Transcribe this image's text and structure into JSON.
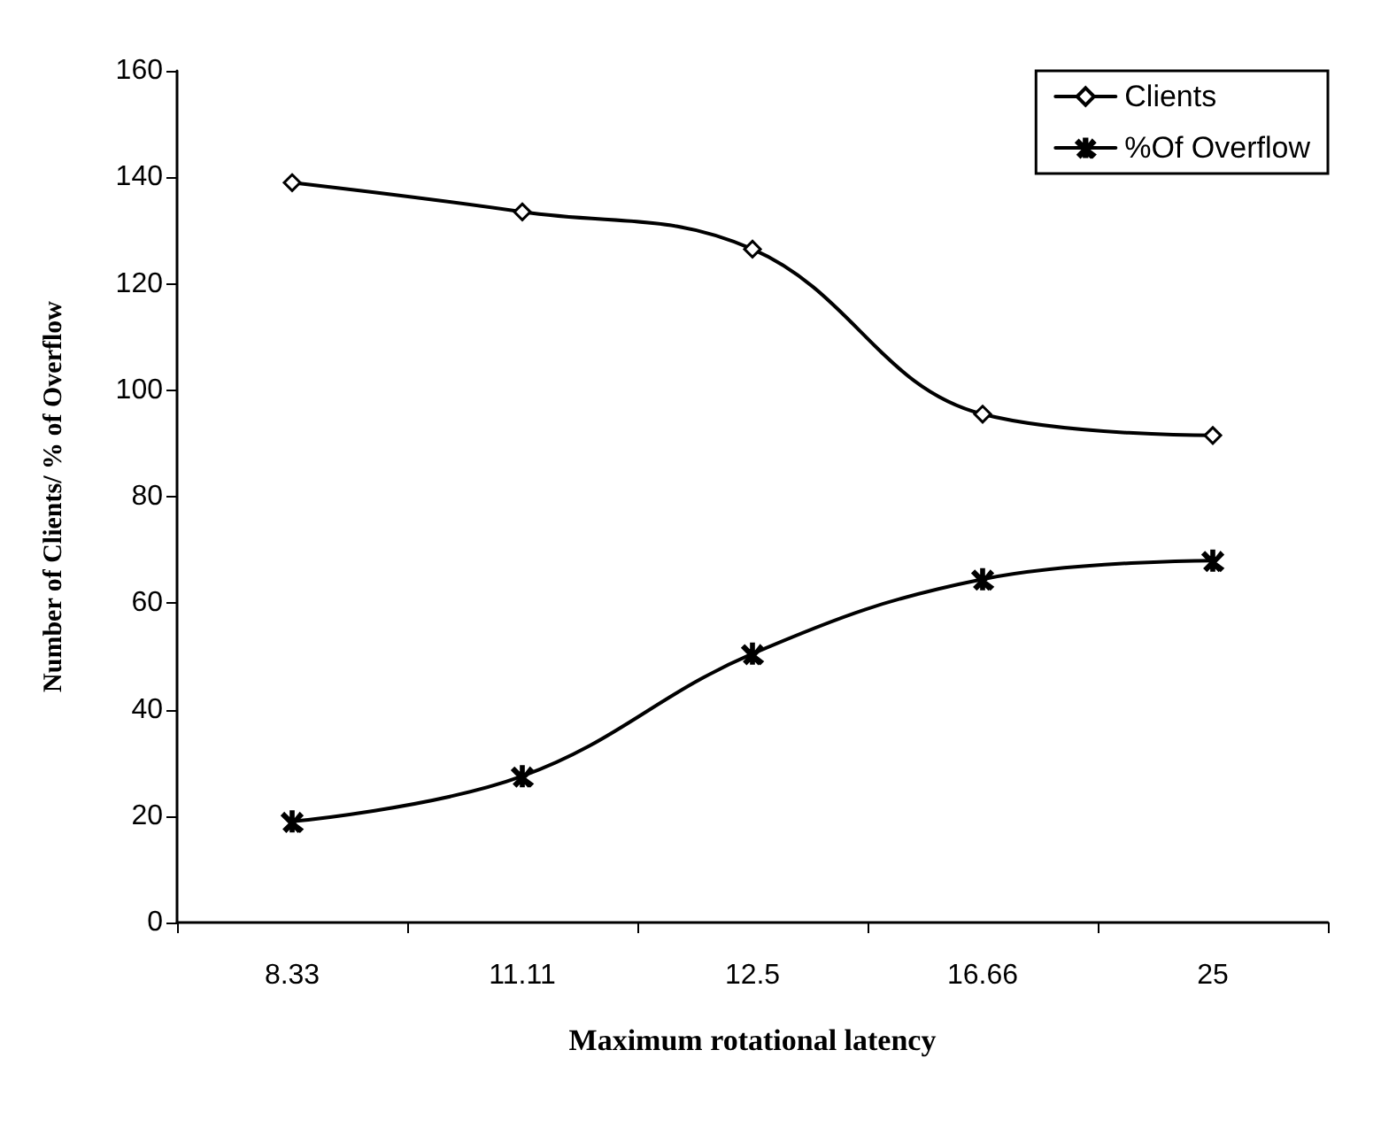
{
  "chart_data": {
    "type": "line",
    "xlabel": "Maximum rotational latency",
    "ylabel": "Number of Clients/ % of Overflow",
    "categories": [
      "8.33",
      "11.11",
      "12.5",
      "16.66",
      "25"
    ],
    "series": [
      {
        "name": "Clients",
        "color": "#000000",
        "marker": "diamond",
        "values": [
          139,
          133.5,
          126.5,
          95.5,
          91.5
        ]
      },
      {
        "name": "%Of Overflow",
        "color": "#000000",
        "marker": "cross",
        "values": [
          19,
          27.5,
          50.5,
          64.5,
          68
        ]
      }
    ],
    "ylim": [
      0,
      160
    ],
    "yticks": [
      0,
      20,
      40,
      60,
      80,
      100,
      120,
      140,
      160
    ],
    "grid": false,
    "legend": "top right",
    "line_style": "solid"
  }
}
